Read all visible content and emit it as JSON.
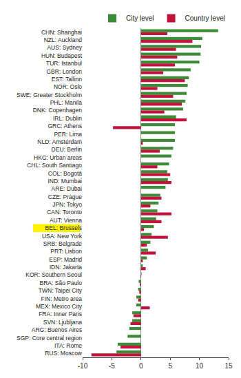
{
  "chart_data": {
    "type": "bar",
    "orientation": "horizontal",
    "categories": [
      "CHN: Shanghai",
      "NZL: Auckland",
      "AUS: Sydney",
      "HUN: Budapest",
      "TUR: Istanbul",
      "GBR: London",
      "EST: Tallinn",
      "NOR: Oslo",
      "SWE: Greater Stockholm",
      "PHL: Manila",
      "DNK: Copenhagen",
      "IRL: Dublin",
      "GRC: Athens",
      "PER: Lima",
      "NLD: Amsterdam",
      "DEU: Berlin",
      "HKG: Urban areas",
      "CHL: South Santiago",
      "COL: Bogotá",
      "IND: Mumbai",
      "ARE: Dubai",
      "CZE: Prague",
      "JPN: Tokyo",
      "CAN: Toronto",
      "AUT: Vienna",
      "BEL: Brussels",
      "USA: New York",
      "SRB: Belgrade",
      "PRT: Lisbon",
      "ESP: Madrid",
      "IDN: Jakarta",
      "KOR: Southern Seoul",
      "BRA: São Paulo",
      "TWN: Taipei City",
      "FIN: Metro area",
      "MEX: Mexico City",
      "FRA: Inner Paris",
      "SVN: Ljubljana",
      "ARG: Buenos Aires",
      "SGP: Core central region",
      "ITA: Rome",
      "RUS: Moscow"
    ],
    "series": [
      {
        "name": "City level",
        "color": "#3d8b37",
        "values": [
          13.2,
          10.5,
          10.3,
          10.2,
          10.0,
          8.5,
          8.2,
          8.0,
          7.8,
          7.6,
          7.2,
          6.0,
          5.8,
          5.8,
          5.8,
          5.5,
          5.2,
          4.8,
          4.5,
          4.6,
          4.2,
          3.3,
          3.0,
          2.8,
          2.6,
          2.2,
          1.8,
          1.6,
          1.2,
          1.0,
          0.3,
          0.1,
          -0.4,
          -0.5,
          -0.8,
          -0.8,
          -1.5,
          -1.5,
          -2.0,
          -2.3,
          -4.0,
          -4.2
        ]
      },
      {
        "name": "Country level",
        "color": "#c0143c",
        "values": [
          4.5,
          8.8,
          6.0,
          6.2,
          5.8,
          3.8,
          7.5,
          2.8,
          5.5,
          7.0,
          4.0,
          7.8,
          -4.8,
          0,
          0.3,
          3.2,
          0,
          2.8,
          5.0,
          5.2,
          0,
          3.5,
          1.6,
          5.2,
          3.5,
          0.5,
          4.6,
          1.0,
          2.5,
          0.3,
          0.8,
          -0.1,
          -0.2,
          -0.3,
          -0.5,
          1.5,
          -1.3,
          -1.8,
          0,
          0,
          -3.5,
          -8.5
        ]
      }
    ],
    "xlim": [
      -10,
      15
    ],
    "xticks": [
      -10,
      -5,
      0,
      5,
      10,
      15
    ],
    "grid": false,
    "legend": "top"
  }
}
